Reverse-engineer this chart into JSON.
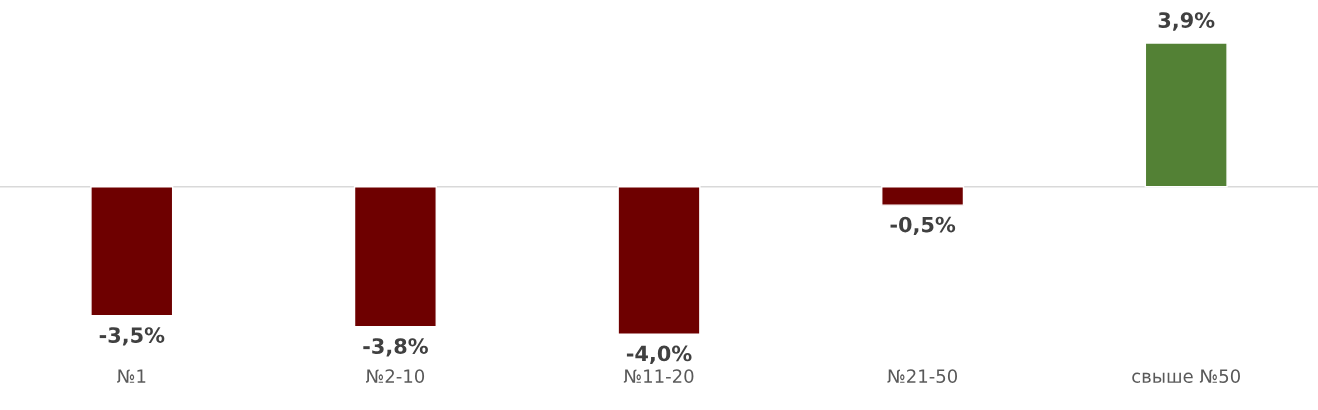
{
  "chart_data": {
    "type": "bar",
    "categories": [
      "№1",
      "№2-10",
      "№11-20",
      "№21-50",
      "свыше №50"
    ],
    "values": [
      -3.5,
      -3.8,
      -4.0,
      -0.5,
      3.9
    ],
    "colors": [
      "#6e0000",
      "#6e0000",
      "#6e0000",
      "#6e0000",
      "#538135"
    ],
    "value_labels": [
      "-3,5%",
      "-3,8%",
      "-4,0%",
      "-0,5%",
      "3,9%"
    ],
    "grid": false,
    "legend": false
  }
}
